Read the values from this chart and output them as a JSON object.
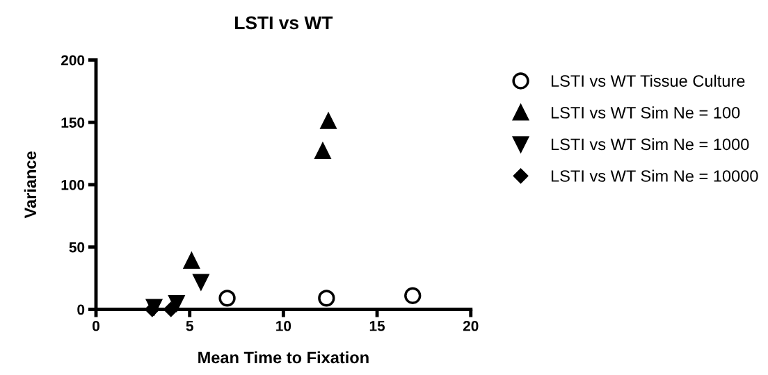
{
  "chart_data": {
    "type": "scatter",
    "title": "LSTI vs WT",
    "xlabel": "Mean Time to Fixation",
    "ylabel": "Variance",
    "xlim": [
      0,
      20
    ],
    "xticks": [
      0,
      5,
      10,
      15,
      20
    ],
    "ylim": [
      0,
      200
    ],
    "yticks": [
      0,
      50,
      100,
      150,
      200
    ],
    "grid": false,
    "legend": "right",
    "series": [
      {
        "name": "LSTI vs WT Tissue Culture",
        "color": "#000000",
        "marker": "circle",
        "x": [
          7.0,
          12.3,
          16.9
        ],
        "values": [
          9,
          9,
          11
        ]
      },
      {
        "name": "LSTI vs WT Sim Ne = 100",
        "color": "#000000",
        "marker": "triangle",
        "x": [
          5.1,
          12.1,
          12.4
        ],
        "values": [
          39,
          127,
          151
        ]
      },
      {
        "name": "LSTI vs WT Sim Ne = 1000",
        "color": "#000000",
        "marker": "triangle_down",
        "x": [
          3.1,
          4.3,
          5.6
        ],
        "values": [
          2,
          5,
          22
        ]
      },
      {
        "name": "LSTI vs WT Sim Ne = 10000",
        "color": "#000000",
        "marker": "diamond",
        "x": [
          3.0,
          4.0
        ],
        "values": [
          0,
          0
        ]
      }
    ]
  }
}
